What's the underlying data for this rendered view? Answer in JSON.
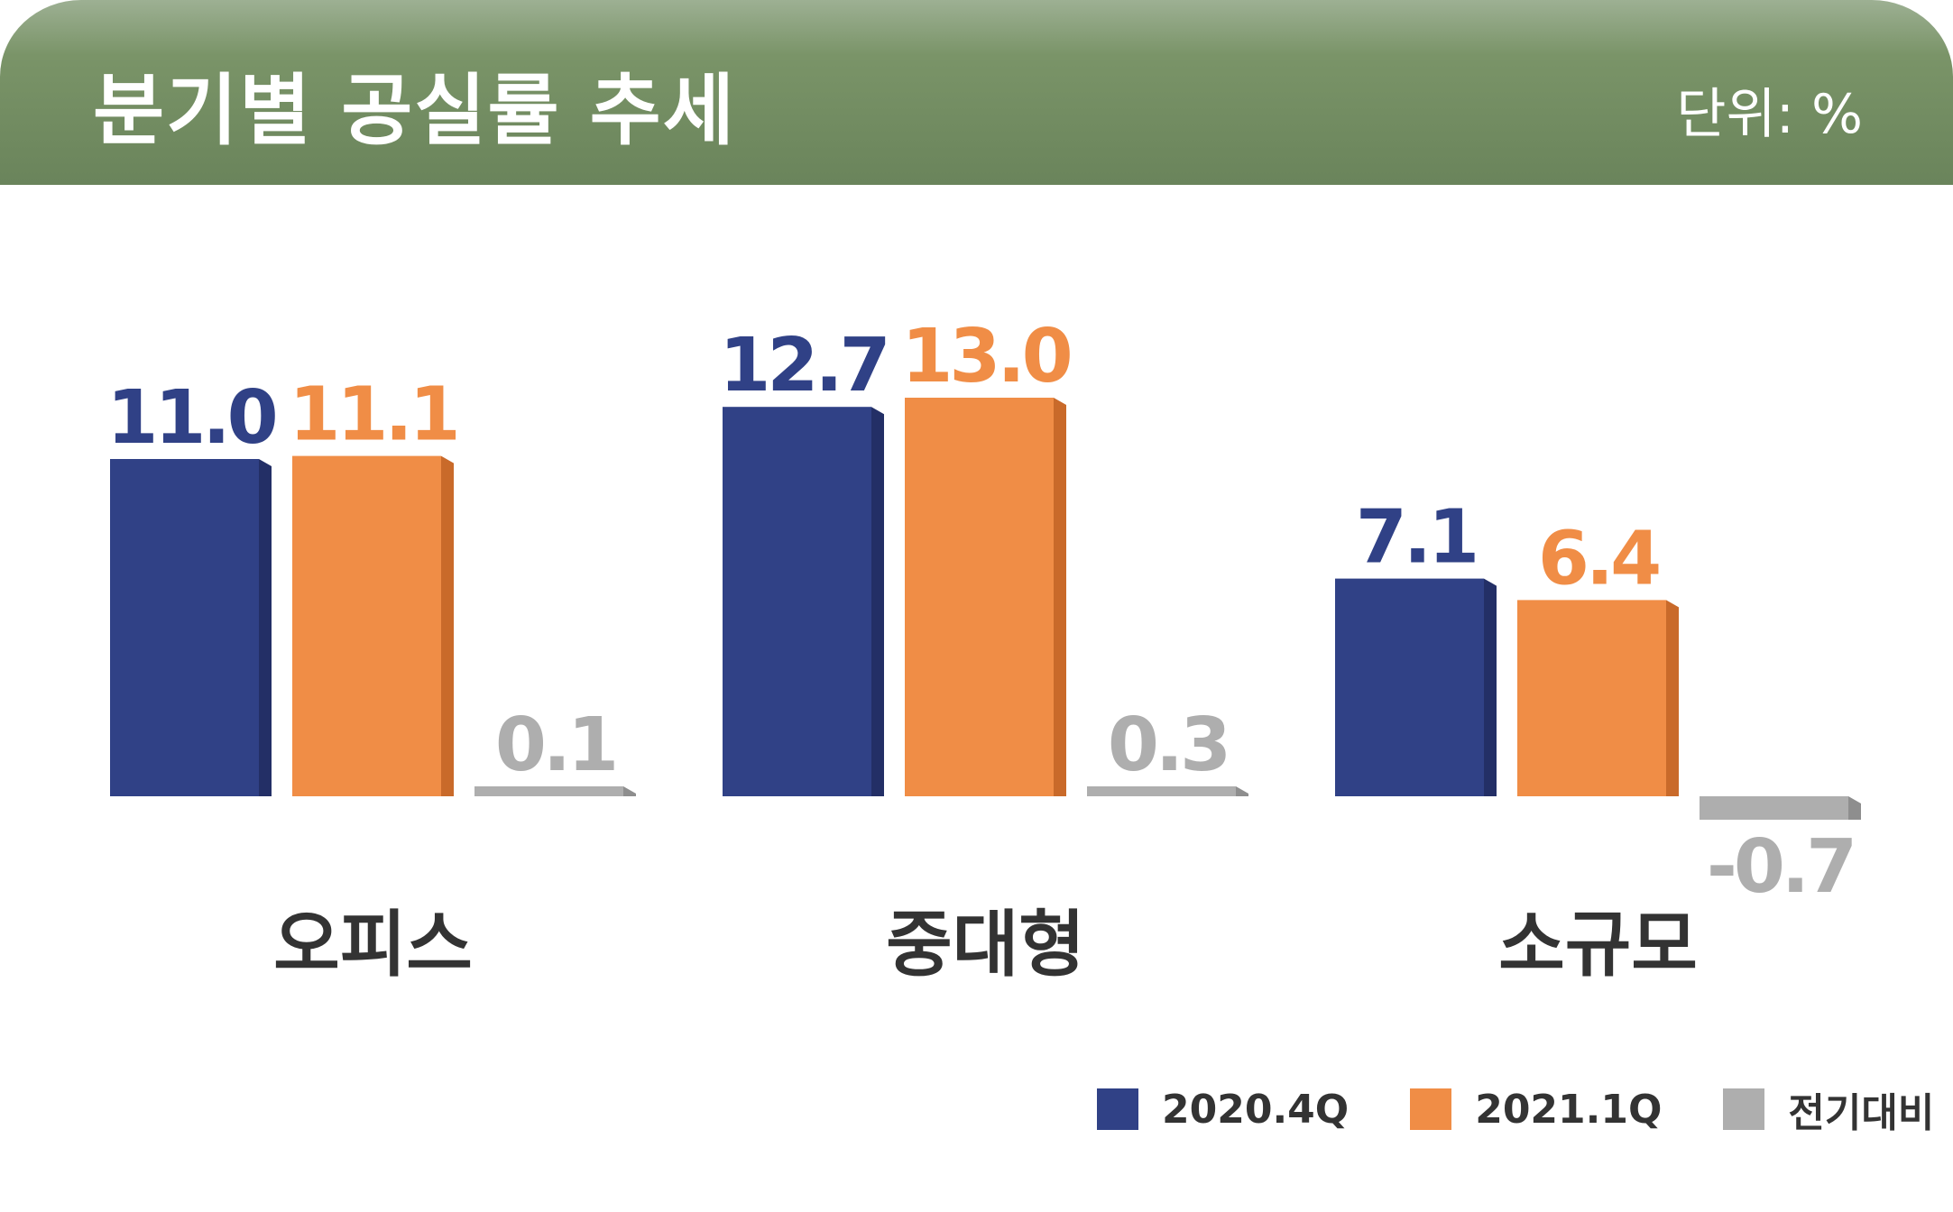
{
  "header": {
    "title": "분기별 공실률 추세",
    "unit": "단위: %"
  },
  "colors": {
    "header": "#6a845b",
    "series_2020_4q": "#304186",
    "series_2020_4q_side": "#232f66",
    "series_2021_1q": "#f08d46",
    "series_2021_1q_side": "#c96a2a",
    "series_change": "#aeaeae",
    "series_change_side": "#8e8e8e",
    "category_text": "#333333"
  },
  "chart_data": {
    "type": "bar",
    "categories": [
      "오피스",
      "중대형",
      "소규모"
    ],
    "series": [
      {
        "name": "2020.4Q",
        "values": [
          11.0,
          12.7,
          7.1
        ],
        "labels": [
          "11.0",
          "12.7",
          "7.1"
        ]
      },
      {
        "name": "2021.1Q",
        "values": [
          11.1,
          13.0,
          6.4
        ],
        "labels": [
          "11.1",
          "13.0",
          "6.4"
        ]
      },
      {
        "name": "전기대비",
        "values": [
          0.1,
          0.3,
          -0.7
        ],
        "labels": [
          "0.1",
          "0.3",
          "-0.7"
        ]
      }
    ],
    "unit": "%",
    "legend_position": "bottom-right",
    "grid": false
  }
}
